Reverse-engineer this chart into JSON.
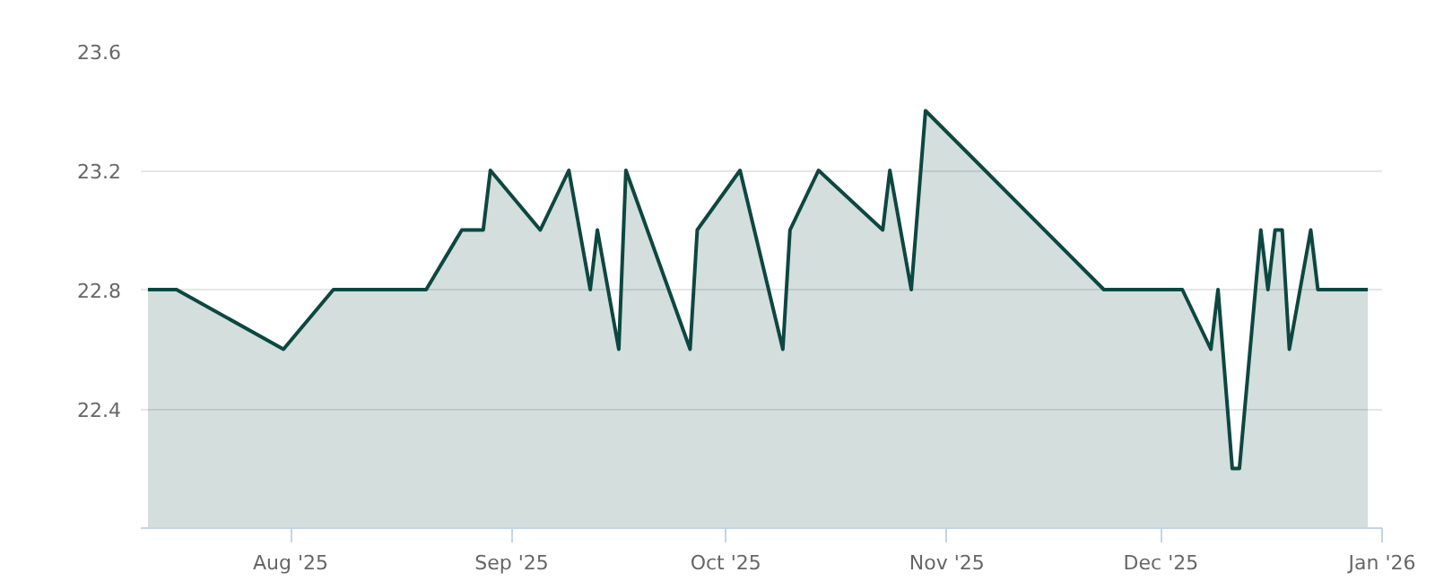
{
  "chart_data": {
    "type": "area",
    "x": [
      "2025-07-12",
      "2025-07-16",
      "2025-07-31",
      "2025-08-07",
      "2025-08-20",
      "2025-08-25",
      "2025-08-28",
      "2025-08-29",
      "2025-09-05",
      "2025-09-09",
      "2025-09-12",
      "2025-09-13",
      "2025-09-16",
      "2025-09-17",
      "2025-09-26",
      "2025-09-27",
      "2025-10-03",
      "2025-10-09",
      "2025-10-10",
      "2025-10-14",
      "2025-10-23",
      "2025-10-24",
      "2025-10-27",
      "2025-10-29",
      "2025-11-23",
      "2025-12-04",
      "2025-12-08",
      "2025-12-09",
      "2025-12-11",
      "2025-12-12",
      "2025-12-15",
      "2025-12-16",
      "2025-12-17",
      "2025-12-18",
      "2025-12-19",
      "2025-12-22",
      "2025-12-23",
      "2025-12-30"
    ],
    "series": [
      {
        "color": "#0d4740",
        "values": [
          22.8,
          22.8,
          22.6,
          22.8,
          22.8,
          23.0,
          23.0,
          23.2,
          23.0,
          23.2,
          22.8,
          23.0,
          22.6,
          23.2,
          22.6,
          23.0,
          23.2,
          22.6,
          23.0,
          23.2,
          23.0,
          23.2,
          22.8,
          23.4,
          22.8,
          22.8,
          22.6,
          22.8,
          22.2,
          22.2,
          23.0,
          22.8,
          23.0,
          23.0,
          22.6,
          23.0,
          22.8,
          22.8
        ]
      }
    ],
    "xlim": [
      "2025-07-11",
      "2026-01-01"
    ],
    "xticks": [
      {
        "value": "2025-08-01",
        "label": "Aug '25"
      },
      {
        "value": "2025-09-01",
        "label": "Sep '25"
      },
      {
        "value": "2025-10-01",
        "label": "Oct '25"
      },
      {
        "value": "2025-11-01",
        "label": "Nov '25"
      },
      {
        "value": "2025-12-01",
        "label": "Dec '25"
      },
      {
        "value": "2026-01-01",
        "label": "Jan '26"
      }
    ],
    "ylim": [
      22.0,
      23.6
    ],
    "yticks": [
      22.4,
      22.8,
      23.2,
      23.6
    ],
    "grid": "y"
  }
}
